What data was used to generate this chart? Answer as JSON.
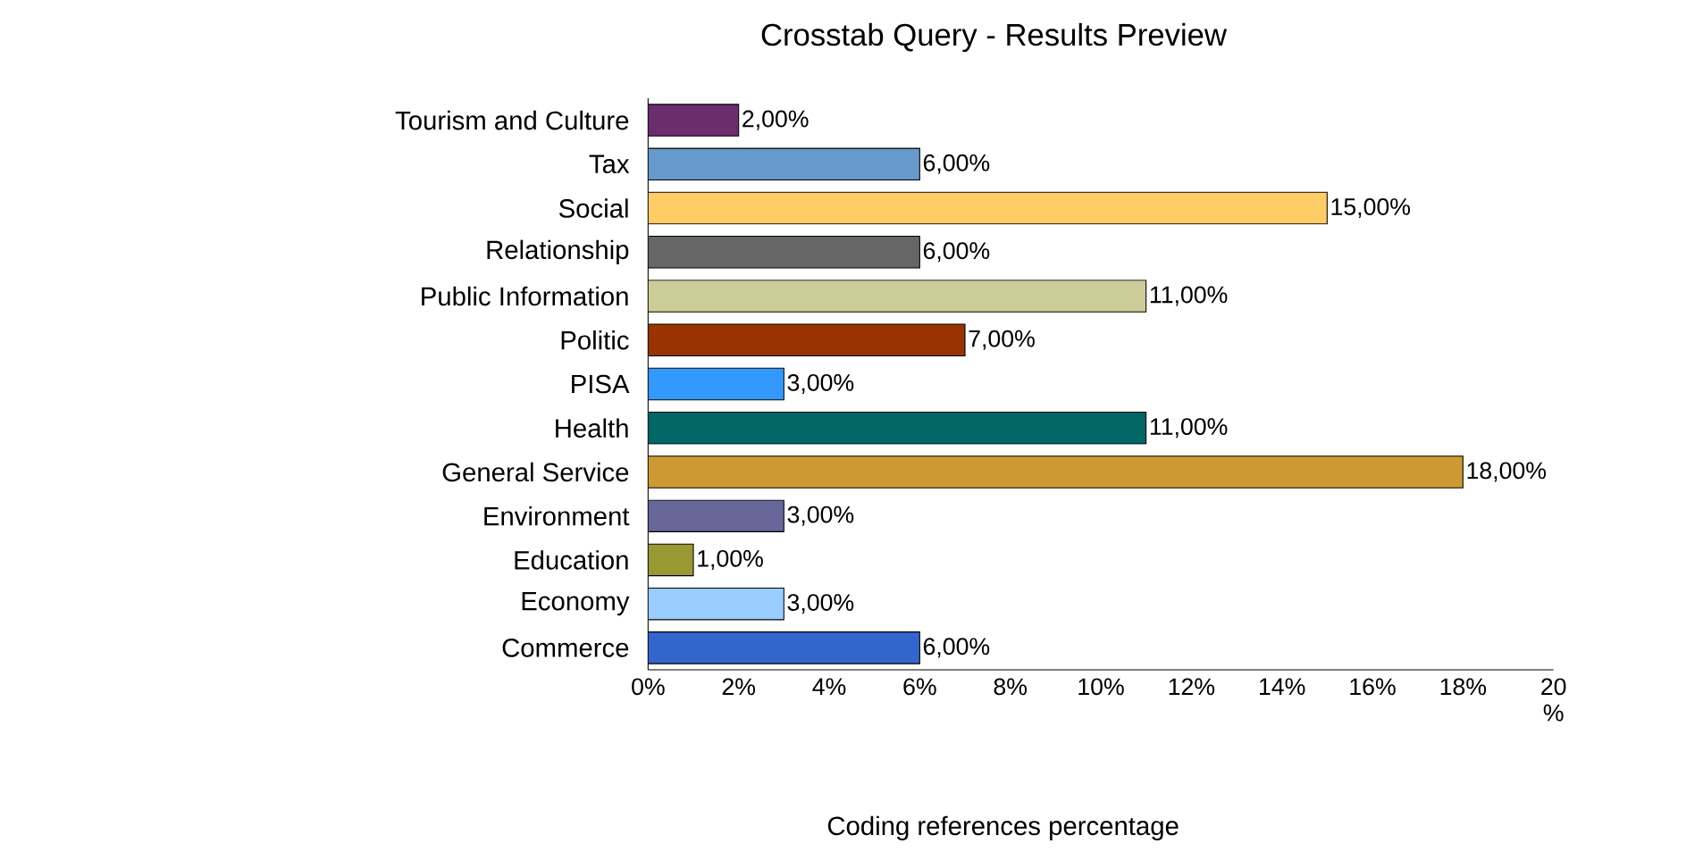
{
  "chart_data": {
    "type": "bar",
    "orientation": "horizontal",
    "title": "Crosstab Query - Results Preview",
    "xlabel": "Coding references percentage",
    "categories": [
      "Tourism and Culture",
      "Tax",
      "Social",
      "Relationship",
      "Public Information",
      "Politic",
      "PISA",
      "Health",
      "General Service",
      "Environment",
      "Education",
      "Economy",
      "Commerce"
    ],
    "values": [
      2,
      6,
      15,
      6,
      11,
      7,
      3,
      11,
      18,
      3,
      1,
      3,
      6
    ],
    "value_labels": [
      "2,00%",
      "6,00%",
      "15,00%",
      "6,00%",
      "11,00%",
      "7,00%",
      "3,00%",
      "11,00%",
      "18,00%",
      "3,00%",
      "1,00%",
      "3,00%",
      "6,00%"
    ],
    "colors": [
      "#6b2d6b",
      "#6699cc",
      "#ffcc66",
      "#666666",
      "#cccc99",
      "#993300",
      "#3399ff",
      "#006666",
      "#cc9933",
      "#666699",
      "#999933",
      "#99ccff",
      "#3366cc"
    ],
    "xlim": [
      0,
      20
    ],
    "xticks": [
      {
        "value": 0,
        "label": "0%"
      },
      {
        "value": 2,
        "label": "2%"
      },
      {
        "value": 4,
        "label": "4%"
      },
      {
        "value": 6,
        "label": "6%"
      },
      {
        "value": 8,
        "label": "8%"
      },
      {
        "value": 10,
        "label": "10%"
      },
      {
        "value": 12,
        "label": "12%"
      },
      {
        "value": 14,
        "label": "14%"
      },
      {
        "value": 16,
        "label": "16%"
      },
      {
        "value": 18,
        "label": "18%"
      },
      {
        "value": 20,
        "label": "20 %"
      }
    ],
    "grid": false
  }
}
